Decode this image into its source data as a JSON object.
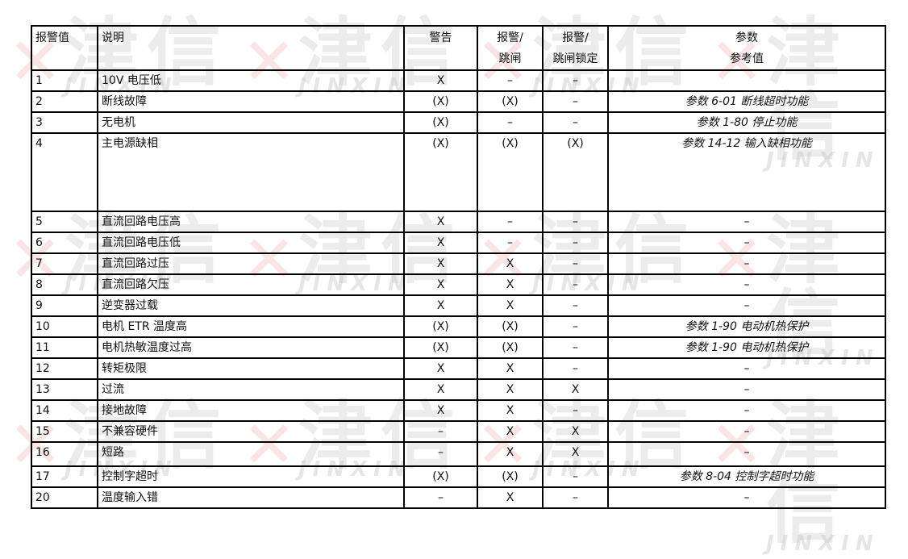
{
  "watermark": {
    "cn": "津信",
    "en": "JINXIN",
    "mark": "✕"
  },
  "headers": {
    "alarm_value": "报警值",
    "description": "说明",
    "warning": "警告",
    "alarm_trip_1": "报警/",
    "alarm_trip_2": "跳闸",
    "alarm_trip_lock_1": "报警/",
    "alarm_trip_lock_2": "跳闸锁定",
    "param_1": "参数",
    "param_2": "参考值"
  },
  "rows": [
    {
      "code": "1",
      "desc": "10V  电压低",
      "warning": "X",
      "trip": "–",
      "lock": "–",
      "param": ""
    },
    {
      "code": "2",
      "desc": "断线故障",
      "warning": "(X)",
      "trip": "(X)",
      "lock": "–",
      "param": "参数  6-01  断线超时功能"
    },
    {
      "code": "3",
      "desc": "无电机",
      "warning": "(X)",
      "trip": "–",
      "lock": "–",
      "param": "参数  1-80  停止功能"
    },
    {
      "code": "4",
      "desc": "主电源缺相",
      "warning": "(X)",
      "trip": "(X)",
      "lock": "(X)",
      "param": "参数  14-12  输入缺相功能"
    },
    {
      "code": "5",
      "desc": "直流回路电压高",
      "warning": "X",
      "trip": "–",
      "lock": "–",
      "param": "–"
    },
    {
      "code": "6",
      "desc": "直流回路电压低",
      "warning": "X",
      "trip": "–",
      "lock": "–",
      "param": "–"
    },
    {
      "code": "7",
      "desc": "直流回路过压",
      "warning": "X",
      "trip": "X",
      "lock": "–",
      "param": "–"
    },
    {
      "code": "8",
      "desc": "直流回路欠压",
      "warning": "X",
      "trip": "X",
      "lock": "–",
      "param": "–"
    },
    {
      "code": "9",
      "desc": "逆变器过载",
      "warning": "X",
      "trip": "X",
      "lock": "–",
      "param": "–"
    },
    {
      "code": "10",
      "desc": "电机  ETR  温度高",
      "warning": "(X)",
      "trip": "(X)",
      "lock": "–",
      "param": "参数  1-90  电动机热保护"
    },
    {
      "code": "11",
      "desc": "电机热敏温度过高",
      "warning": "(X)",
      "trip": "(X)",
      "lock": "–",
      "param": "参数  1-90  电动机热保护"
    },
    {
      "code": "12",
      "desc": "转矩极限",
      "warning": "X",
      "trip": "X",
      "lock": "–",
      "param": "–"
    },
    {
      "code": "13",
      "desc": "过流",
      "warning": "X",
      "trip": "X",
      "lock": "X",
      "param": "–"
    },
    {
      "code": "14",
      "desc": "接地故障",
      "warning": "X",
      "trip": "X",
      "lock": "–",
      "param": "–"
    },
    {
      "code": "15",
      "desc": "不兼容硬件",
      "warning": "–",
      "trip": "X",
      "lock": "X",
      "param": "–"
    },
    {
      "code": "16",
      "desc": "短路",
      "warning": "–",
      "trip": "X",
      "lock": "X",
      "param": "–"
    },
    {
      "code": "17",
      "desc": "控制字超时",
      "warning": "(X)",
      "trip": "(X)",
      "lock": "–",
      "param": "参数  8-04  控制字超时功能"
    },
    {
      "code": "20",
      "desc": "温度输入错",
      "warning": "–",
      "trip": "X",
      "lock": "–",
      "param": "–"
    }
  ]
}
